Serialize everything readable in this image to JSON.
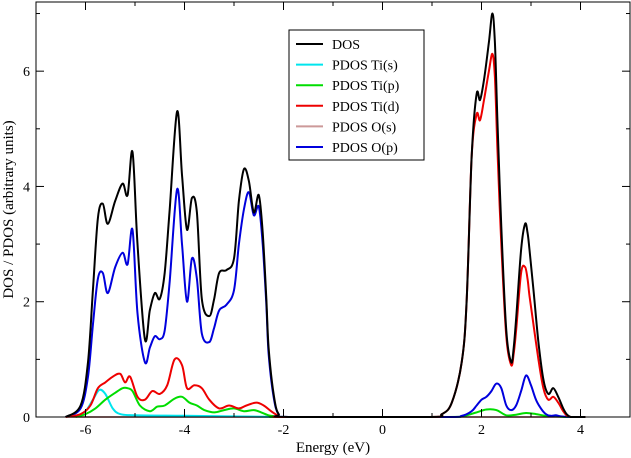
{
  "chart_data": {
    "type": "line",
    "xlabel": "Energy (eV)",
    "ylabel": "DOS / PDOS (arbitrary units)",
    "xlim": [
      -7,
      5
    ],
    "ylim": [
      0,
      7.2
    ],
    "xticks": [
      -6,
      -4,
      -2,
      0,
      2,
      4
    ],
    "yticks": [
      0,
      2,
      4,
      6
    ],
    "grid": false,
    "legend_position": "top-center",
    "series": [
      {
        "name": "DOS",
        "color": "#000000",
        "x": [
          -6.4,
          -6.1,
          -5.95,
          -5.85,
          -5.75,
          -5.65,
          -5.55,
          -5.4,
          -5.25,
          -5.15,
          -5.05,
          -4.95,
          -4.8,
          -4.7,
          -4.6,
          -4.5,
          -4.4,
          -4.3,
          -4.15,
          -4.05,
          -3.95,
          -3.85,
          -3.75,
          -3.65,
          -3.5,
          -3.4,
          -3.3,
          -3.15,
          -3.0,
          -2.9,
          -2.8,
          -2.7,
          -2.6,
          -2.5,
          -2.42,
          -2.35,
          -2.3,
          -2.2,
          -2.1,
          -1.9,
          0.9,
          1.2,
          1.4,
          1.6,
          1.7,
          1.8,
          1.9,
          1.97,
          2.05,
          2.15,
          2.22,
          2.27,
          2.32,
          2.4,
          2.5,
          2.6,
          2.65,
          2.7,
          2.8,
          2.88,
          2.93,
          2.97,
          3.05,
          3.15,
          3.25,
          3.35,
          3.45,
          3.55,
          3.65,
          3.72,
          3.8,
          3.9,
          4.1
        ],
        "values": [
          0,
          0.2,
          0.95,
          2.2,
          3.45,
          3.7,
          3.35,
          3.75,
          4.05,
          3.85,
          4.6,
          3.0,
          1.35,
          1.85,
          2.15,
          2.05,
          2.5,
          3.6,
          5.3,
          4.2,
          3.25,
          3.8,
          3.55,
          2.05,
          1.75,
          2.05,
          2.5,
          2.55,
          2.75,
          3.75,
          4.3,
          4.1,
          3.55,
          3.85,
          3.2,
          2.1,
          1.2,
          0.4,
          0.05,
          0,
          0,
          0.05,
          0.25,
          0.95,
          2.0,
          4.5,
          5.6,
          5.5,
          5.85,
          6.5,
          7.0,
          6.5,
          5.2,
          3.3,
          1.5,
          0.95,
          1.2,
          1.7,
          2.9,
          3.35,
          3.2,
          2.9,
          2.2,
          1.3,
          0.65,
          0.4,
          0.5,
          0.35,
          0.15,
          0.05,
          0,
          0,
          0
        ]
      },
      {
        "name": "PDOS Ti(s)",
        "color": "#00e5ee",
        "x": [
          -6.2,
          -6.0,
          -5.85,
          -5.72,
          -5.6,
          -5.45,
          -5.3,
          -5.0,
          -4.0,
          -2.0
        ],
        "values": [
          0,
          0.1,
          0.3,
          0.47,
          0.4,
          0.15,
          0.05,
          0.03,
          0.02,
          0
        ],
        "_note": ""
      },
      {
        "name": "PDOS Ti(p)",
        "color": "#00dd00",
        "x": [
          -6.2,
          -6.0,
          -5.8,
          -5.6,
          -5.4,
          -5.25,
          -5.15,
          -5.05,
          -4.9,
          -4.7,
          -4.55,
          -4.4,
          -4.2,
          -4.05,
          -3.9,
          -3.75,
          -3.6,
          -3.4,
          -3.2,
          -3.0,
          -2.8,
          -2.6,
          -2.45,
          -2.3,
          -2.15,
          -2.0,
          1.2,
          1.6,
          1.9,
          2.1,
          2.3,
          2.5,
          2.7,
          2.9,
          3.1,
          3.3,
          3.5,
          3.7,
          3.9
        ],
        "values": [
          0,
          0.05,
          0.15,
          0.3,
          0.42,
          0.5,
          0.5,
          0.45,
          0.2,
          0.1,
          0.18,
          0.2,
          0.32,
          0.35,
          0.25,
          0.2,
          0.12,
          0.08,
          0.12,
          0.15,
          0.1,
          0.12,
          0.08,
          0.03,
          0.01,
          0,
          0,
          0.01,
          0.08,
          0.13,
          0.12,
          0.03,
          0.04,
          0.07,
          0.05,
          0.02,
          0.01,
          0,
          0
        ]
      },
      {
        "name": "PDOS Ti(d)",
        "color": "#ee0000",
        "x": [
          -6.4,
          -6.1,
          -5.9,
          -5.75,
          -5.6,
          -5.45,
          -5.3,
          -5.2,
          -5.1,
          -4.95,
          -4.8,
          -4.65,
          -4.5,
          -4.35,
          -4.2,
          -4.05,
          -3.95,
          -3.8,
          -3.65,
          -3.5,
          -3.3,
          -3.1,
          -2.9,
          -2.75,
          -2.55,
          -2.4,
          -2.25,
          -2.1,
          -1.95,
          0.9,
          1.2,
          1.4,
          1.6,
          1.7,
          1.8,
          1.9,
          1.97,
          2.05,
          2.15,
          2.22,
          2.27,
          2.32,
          2.4,
          2.5,
          2.6,
          2.65,
          2.7,
          2.8,
          2.88,
          2.93,
          2.97,
          3.05,
          3.15,
          3.25,
          3.35,
          3.45,
          3.55,
          3.65,
          3.72,
          3.8,
          3.9,
          4.1
        ],
        "values": [
          0,
          0.05,
          0.2,
          0.5,
          0.6,
          0.7,
          0.75,
          0.6,
          0.7,
          0.35,
          0.3,
          0.45,
          0.4,
          0.55,
          1.0,
          0.9,
          0.5,
          0.55,
          0.5,
          0.3,
          0.15,
          0.2,
          0.15,
          0.2,
          0.25,
          0.2,
          0.1,
          0.02,
          0,
          0,
          0.05,
          0.25,
          0.95,
          2.0,
          4.5,
          5.25,
          5.15,
          5.5,
          6.0,
          6.3,
          5.9,
          4.7,
          3.0,
          1.4,
          0.9,
          1.1,
          1.5,
          2.5,
          2.6,
          2.4,
          2.1,
          1.6,
          1.0,
          0.5,
          0.3,
          0.35,
          0.25,
          0.1,
          0.03,
          0,
          0,
          0
        ]
      },
      {
        "name": "PDOS O(s)",
        "color": "#cc9999",
        "x": [
          -6.4,
          -2.0,
          0,
          1.0,
          4.1
        ],
        "values": [
          0,
          0,
          0,
          0,
          0
        ]
      },
      {
        "name": "PDOS O(p)",
        "color": "#0000dd",
        "x": [
          -6.4,
          -6.1,
          -5.95,
          -5.85,
          -5.75,
          -5.65,
          -5.55,
          -5.4,
          -5.25,
          -5.15,
          -5.05,
          -4.95,
          -4.8,
          -4.7,
          -4.6,
          -4.5,
          -4.4,
          -4.3,
          -4.15,
          -4.05,
          -3.95,
          -3.85,
          -3.75,
          -3.65,
          -3.5,
          -3.4,
          -3.3,
          -3.15,
          -3.0,
          -2.9,
          -2.8,
          -2.7,
          -2.6,
          -2.5,
          -2.42,
          -2.35,
          -2.3,
          -2.2,
          -2.1,
          -1.9,
          1.2,
          1.6,
          1.8,
          1.9,
          2.0,
          2.1,
          2.2,
          2.3,
          2.4,
          2.5,
          2.6,
          2.7,
          2.8,
          2.9,
          3.0,
          3.1,
          3.2,
          3.3,
          3.4,
          3.5,
          3.6,
          3.8
        ],
        "values": [
          0,
          0.15,
          0.7,
          1.6,
          2.4,
          2.5,
          2.15,
          2.6,
          2.85,
          2.65,
          3.25,
          1.8,
          0.95,
          1.2,
          1.4,
          1.35,
          1.5,
          2.35,
          3.95,
          3.0,
          2.0,
          2.75,
          2.4,
          1.45,
          1.3,
          1.55,
          1.85,
          1.95,
          2.2,
          3.0,
          3.6,
          3.9,
          3.5,
          3.65,
          3.0,
          2.0,
          1.1,
          0.35,
          0.05,
          0,
          0,
          0.02,
          0.1,
          0.2,
          0.3,
          0.35,
          0.45,
          0.58,
          0.5,
          0.2,
          0.12,
          0.2,
          0.45,
          0.72,
          0.55,
          0.3,
          0.15,
          0.05,
          0.02,
          0.03,
          0.01,
          0
        ]
      }
    ]
  }
}
